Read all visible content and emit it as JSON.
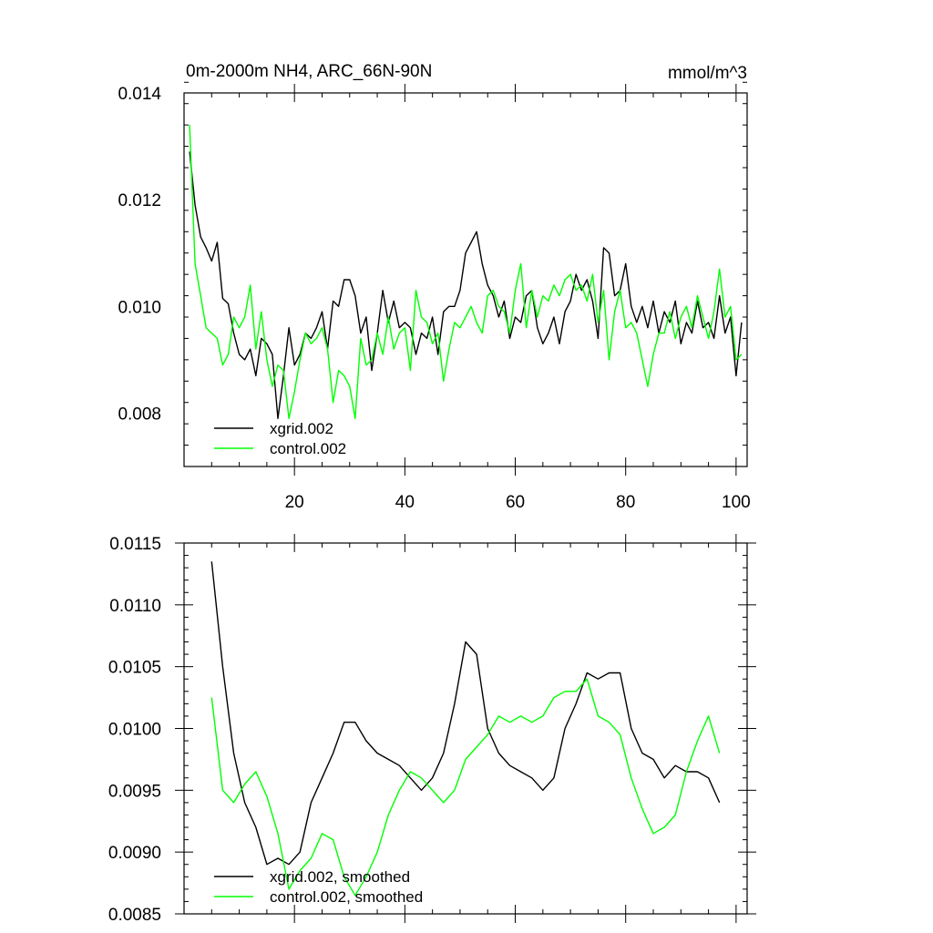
{
  "chart_data": [
    {
      "type": "line",
      "title": "0m-2000m NH4, ARC_66N-90N",
      "units": "mmol/m^3",
      "xlim": [
        0,
        102
      ],
      "ylim": [
        0.007,
        0.014
      ],
      "xticks": [
        20,
        40,
        60,
        80,
        100
      ],
      "xtick_labels": [
        "20",
        "40",
        "60",
        "80",
        "100"
      ],
      "yticks": [
        0.008,
        0.01,
        0.012,
        0.014
      ],
      "ytick_labels": [
        "0.008",
        "0.010",
        "0.012",
        "0.014"
      ],
      "legend_position": "bottom-left",
      "series": [
        {
          "name": "xgrid.002",
          "color": "#000000",
          "x": [
            1,
            2,
            3,
            4,
            5,
            6,
            7,
            8,
            9,
            10,
            11,
            12,
            13,
            14,
            15,
            16,
            17,
            18,
            19,
            20,
            21,
            22,
            23,
            24,
            25,
            26,
            27,
            28,
            29,
            30,
            31,
            32,
            33,
            34,
            35,
            36,
            37,
            38,
            39,
            40,
            41,
            42,
            43,
            44,
            45,
            46,
            47,
            48,
            49,
            50,
            51,
            52,
            53,
            54,
            55,
            56,
            57,
            58,
            59,
            60,
            61,
            62,
            63,
            64,
            65,
            66,
            67,
            68,
            69,
            70,
            71,
            72,
            73,
            74,
            75,
            76,
            77,
            78,
            79,
            80,
            81,
            82,
            83,
            84,
            85,
            86,
            87,
            88,
            89,
            90,
            91,
            92,
            93,
            94,
            95,
            96,
            97,
            98,
            99,
            100,
            101
          ],
          "y": [
            0.0129,
            0.0119,
            0.0113,
            0.0111,
            0.01085,
            0.0112,
            0.01015,
            0.01005,
            0.0095,
            0.0091,
            0.009,
            0.0092,
            0.0087,
            0.0094,
            0.0093,
            0.0091,
            0.0079,
            0.0087,
            0.0096,
            0.0089,
            0.0091,
            0.0095,
            0.0094,
            0.0096,
            0.0099,
            0.0092,
            0.0101,
            0.01,
            0.0105,
            0.0105,
            0.0102,
            0.0095,
            0.0098,
            0.0088,
            0.0095,
            0.0103,
            0.0097,
            0.0101,
            0.0096,
            0.0097,
            0.0096,
            0.0091,
            0.0095,
            0.0094,
            0.0098,
            0.0091,
            0.0099,
            0.01,
            0.01,
            0.0103,
            0.011,
            0.0112,
            0.0114,
            0.0108,
            0.0104,
            0.0102,
            0.0098,
            0.0101,
            0.0094,
            0.0098,
            0.0097,
            0.0102,
            0.0103,
            0.0096,
            0.0093,
            0.0095,
            0.0098,
            0.0093,
            0.0099,
            0.0101,
            0.0106,
            0.0103,
            0.0105,
            0.0101,
            0.0094,
            0.0111,
            0.011,
            0.0102,
            0.0103,
            0.0108,
            0.01,
            0.0097,
            0.01,
            0.0096,
            0.0101,
            0.0095,
            0.0099,
            0.0097,
            0.0101,
            0.0093,
            0.0097,
            0.0095,
            0.0101,
            0.0096,
            0.0097,
            0.0094,
            0.0102,
            0.0095,
            0.0098,
            0.0087,
            0.0097
          ]
        },
        {
          "name": "control.002",
          "color": "#00ff00",
          "x": [
            1,
            2,
            3,
            4,
            5,
            6,
            7,
            8,
            9,
            10,
            11,
            12,
            13,
            14,
            15,
            16,
            17,
            18,
            19,
            20,
            21,
            22,
            23,
            24,
            25,
            26,
            27,
            28,
            29,
            30,
            31,
            32,
            33,
            34,
            35,
            36,
            37,
            38,
            39,
            40,
            41,
            42,
            43,
            44,
            45,
            46,
            47,
            48,
            49,
            50,
            51,
            52,
            53,
            54,
            55,
            56,
            57,
            58,
            59,
            60,
            61,
            62,
            63,
            64,
            65,
            66,
            67,
            68,
            69,
            70,
            71,
            72,
            73,
            74,
            75,
            76,
            77,
            78,
            79,
            80,
            81,
            82,
            83,
            84,
            85,
            86,
            87,
            88,
            89,
            90,
            91,
            92,
            93,
            94,
            95,
            96,
            97,
            98,
            99,
            100,
            101
          ],
          "y": [
            0.0134,
            0.0108,
            0.0102,
            0.0096,
            0.0095,
            0.0094,
            0.0089,
            0.0091,
            0.0098,
            0.0096,
            0.0098,
            0.0104,
            0.0092,
            0.0099,
            0.009,
            0.0085,
            0.0089,
            0.0088,
            0.0079,
            0.0084,
            0.009,
            0.0095,
            0.0093,
            0.0094,
            0.0096,
            0.0092,
            0.0082,
            0.0088,
            0.0087,
            0.0085,
            0.0079,
            0.0094,
            0.0089,
            0.009,
            0.0095,
            0.0091,
            0.0098,
            0.0092,
            0.0095,
            0.0096,
            0.0088,
            0.0103,
            0.0098,
            0.0097,
            0.0093,
            0.0095,
            0.0086,
            0.0092,
            0.0097,
            0.0096,
            0.0098,
            0.01,
            0.0097,
            0.0095,
            0.0102,
            0.0103,
            0.01,
            0.0099,
            0.0095,
            0.0103,
            0.0108,
            0.0096,
            0.0103,
            0.0098,
            0.0102,
            0.0101,
            0.0104,
            0.0102,
            0.0105,
            0.0106,
            0.0103,
            0.0104,
            0.0101,
            0.0106,
            0.0097,
            0.0103,
            0.009,
            0.0099,
            0.0103,
            0.0096,
            0.0097,
            0.0095,
            0.009,
            0.0085,
            0.0091,
            0.0095,
            0.0095,
            0.0099,
            0.0094,
            0.0098,
            0.01,
            0.0096,
            0.0102,
            0.0098,
            0.0094,
            0.0099,
            0.0107,
            0.0098,
            0.01,
            0.009,
            0.0091
          ]
        }
      ]
    },
    {
      "type": "line",
      "title": "",
      "xlim": [
        0,
        102
      ],
      "ylim": [
        0.0085,
        0.0115
      ],
      "yticks": [
        0.0085,
        0.009,
        0.0095,
        0.01,
        0.0105,
        0.011,
        0.0115
      ],
      "ytick_labels": [
        "0.0085",
        "0.0090",
        "0.0095",
        "0.0100",
        "0.0105",
        "0.0110",
        "0.0115"
      ],
      "legend_position": "bottom-left",
      "series": [
        {
          "name": "xgrid.002, smoothed",
          "color": "#000000",
          "x": [
            5,
            7,
            9,
            11,
            13,
            15,
            17,
            19,
            21,
            23,
            25,
            27,
            29,
            31,
            33,
            35,
            37,
            39,
            41,
            43,
            45,
            47,
            49,
            51,
            53,
            55,
            57,
            59,
            61,
            63,
            65,
            67,
            69,
            71,
            73,
            75,
            77,
            79,
            81,
            83,
            85,
            87,
            89,
            91,
            93,
            95,
            97
          ],
          "y": [
            0.01135,
            0.0105,
            0.0098,
            0.0094,
            0.0092,
            0.0089,
            0.00895,
            0.0089,
            0.009,
            0.0094,
            0.0096,
            0.0098,
            0.01005,
            0.01005,
            0.0099,
            0.0098,
            0.00975,
            0.0097,
            0.0096,
            0.0095,
            0.0096,
            0.0098,
            0.0102,
            0.0107,
            0.0106,
            0.01,
            0.0098,
            0.0097,
            0.00965,
            0.0096,
            0.0095,
            0.0096,
            0.01,
            0.0102,
            0.01045,
            0.0104,
            0.01045,
            0.01045,
            0.01,
            0.0098,
            0.00975,
            0.0096,
            0.0097,
            0.00965,
            0.00965,
            0.0096,
            0.0094
          ]
        },
        {
          "name": "control.002, smoothed",
          "color": "#00ff00",
          "x": [
            5,
            7,
            9,
            11,
            13,
            15,
            17,
            19,
            21,
            23,
            25,
            27,
            29,
            31,
            33,
            35,
            37,
            39,
            41,
            43,
            45,
            47,
            49,
            51,
            53,
            55,
            57,
            59,
            61,
            63,
            65,
            67,
            69,
            71,
            73,
            75,
            77,
            79,
            81,
            83,
            85,
            87,
            89,
            91,
            93,
            95,
            97
          ],
          "y": [
            0.01025,
            0.0095,
            0.0094,
            0.00955,
            0.00965,
            0.00945,
            0.00915,
            0.0087,
            0.00885,
            0.00895,
            0.00915,
            0.0091,
            0.0088,
            0.00865,
            0.0088,
            0.009,
            0.0093,
            0.0095,
            0.00965,
            0.0096,
            0.0095,
            0.0094,
            0.0095,
            0.00975,
            0.00985,
            0.00995,
            0.0101,
            0.01005,
            0.0101,
            0.01005,
            0.0101,
            0.01025,
            0.0103,
            0.0103,
            0.0104,
            0.0101,
            0.01005,
            0.00995,
            0.0096,
            0.00935,
            0.00915,
            0.0092,
            0.0093,
            0.00965,
            0.0099,
            0.0101,
            0.0098
          ]
        }
      ]
    }
  ]
}
